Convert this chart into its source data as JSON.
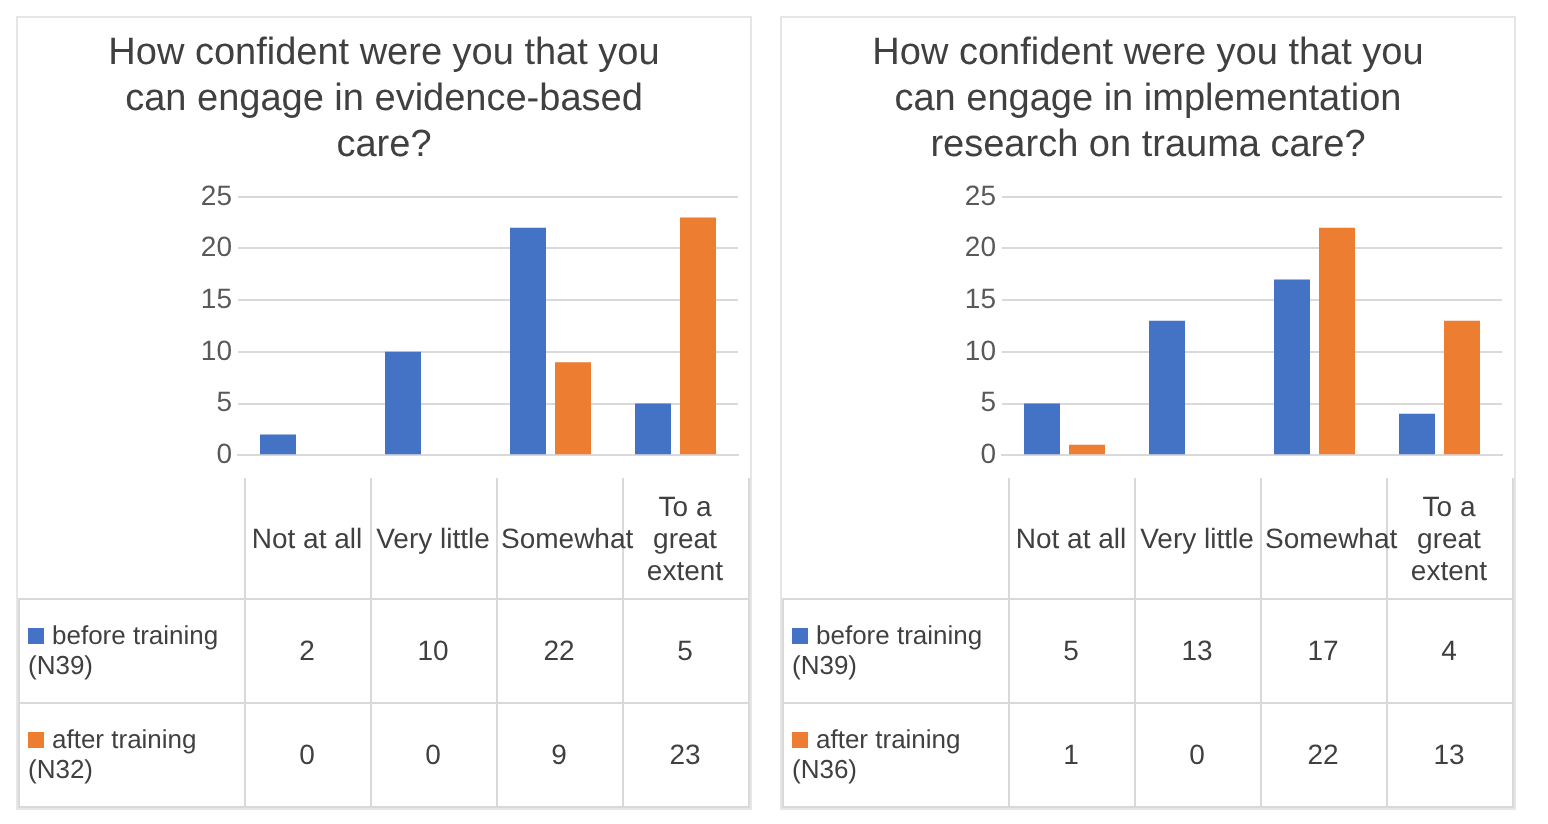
{
  "chart_data": [
    {
      "type": "bar",
      "title": "How confident were you that you can engage in evidence-based care?",
      "categories": [
        "Not at all",
        "Very little",
        "Somewhat",
        "To a great extent"
      ],
      "ylim": [
        0,
        25
      ],
      "yticks": [
        0,
        5,
        10,
        15,
        20,
        25
      ],
      "grid": "y",
      "data_labels": true,
      "legend": "bottom left",
      "series": [
        {
          "name": "before training (N39)",
          "color": "#4472c4",
          "values": [
            2,
            10,
            22,
            5
          ]
        },
        {
          "name": "after training (N32)",
          "color": "#ed7d31",
          "values": [
            0,
            0,
            9,
            23
          ]
        }
      ]
    },
    {
      "type": "bar",
      "title": "How confident were you that you can engage in implementation research on trauma care?",
      "categories": [
        "Not at all",
        "Very little",
        "Somewhat",
        "To a great extent"
      ],
      "ylim": [
        0,
        25
      ],
      "yticks": [
        0,
        5,
        10,
        15,
        20,
        25
      ],
      "grid": "y",
      "data_labels": true,
      "legend": "bottom left",
      "series": [
        {
          "name": "before training (N39)",
          "color": "#4472c4",
          "values": [
            5,
            13,
            17,
            4
          ]
        },
        {
          "name": "after training (N36)",
          "color": "#ed7d31",
          "values": [
            1,
            0,
            22,
            13
          ]
        }
      ]
    }
  ]
}
